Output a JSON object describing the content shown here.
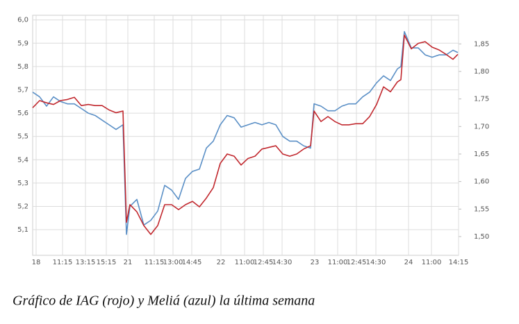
{
  "chart_data": {
    "type": "line",
    "caption": "Gráfico de IAG (rojo) y Meliá (azul) la última semana",
    "x": [
      0,
      2,
      4,
      6,
      8,
      10,
      12,
      14,
      16,
      18,
      20,
      22,
      24,
      26,
      27,
      28,
      30,
      32,
      34,
      36,
      38,
      40,
      42,
      44,
      46,
      48,
      50,
      52,
      54,
      56,
      58,
      60,
      62,
      64,
      66,
      68,
      70,
      72,
      74,
      76,
      78,
      80,
      81,
      83,
      85,
      87,
      89,
      91,
      93,
      95,
      97,
      99,
      101,
      103,
      105,
      106,
      107,
      109,
      111,
      113,
      115,
      117,
      119,
      121,
      122.4
    ],
    "series": [
      {
        "name": "Meliá",
        "color": "#5a8fc6",
        "axis": "y",
        "values": [
          5.69,
          5.67,
          5.63,
          5.67,
          5.65,
          5.64,
          5.64,
          5.62,
          5.6,
          5.59,
          5.57,
          5.55,
          5.53,
          5.55,
          5.08,
          5.2,
          5.23,
          5.12,
          5.14,
          5.18,
          5.29,
          5.27,
          5.23,
          5.32,
          5.35,
          5.36,
          5.45,
          5.48,
          5.55,
          5.59,
          5.58,
          5.54,
          5.55,
          5.56,
          5.55,
          5.56,
          5.55,
          5.5,
          5.48,
          5.48,
          5.46,
          5.45,
          5.64,
          5.63,
          5.61,
          5.61,
          5.63,
          5.64,
          5.64,
          5.67,
          5.69,
          5.73,
          5.76,
          5.74,
          5.79,
          5.8,
          5.95,
          5.88,
          5.88,
          5.85,
          5.84,
          5.85,
          5.85,
          5.87,
          5.86
        ]
      },
      {
        "name": "IAG",
        "color": "#c1272d",
        "axis": "y2",
        "values": [
          1.734,
          1.747,
          1.743,
          1.74,
          1.747,
          1.749,
          1.753,
          1.738,
          1.74,
          1.738,
          1.738,
          1.73,
          1.725,
          1.728,
          1.526,
          1.558,
          1.545,
          1.52,
          1.504,
          1.52,
          1.558,
          1.558,
          1.549,
          1.558,
          1.564,
          1.554,
          1.57,
          1.589,
          1.633,
          1.65,
          1.646,
          1.63,
          1.642,
          1.646,
          1.659,
          1.662,
          1.665,
          1.65,
          1.646,
          1.65,
          1.659,
          1.665,
          1.728,
          1.709,
          1.718,
          1.709,
          1.703,
          1.703,
          1.705,
          1.705,
          1.718,
          1.74,
          1.772,
          1.763,
          1.781,
          1.785,
          1.866,
          1.841,
          1.851,
          1.854,
          1.844,
          1.839,
          1.831,
          1.822,
          1.831
        ]
      }
    ],
    "xlim": [
      0,
      122.6
    ],
    "xticks": [
      {
        "value": 1,
        "label": "18"
      },
      {
        "value": 8.6,
        "label": "11:15"
      },
      {
        "value": 15.2,
        "label": "13:15"
      },
      {
        "value": 21.2,
        "label": "15:15"
      },
      {
        "value": 27.4,
        "label": "21"
      },
      {
        "value": 35,
        "label": "11:15"
      },
      {
        "value": 40.4,
        "label": "13:00"
      },
      {
        "value": 45.8,
        "label": "14:45"
      },
      {
        "value": 54.2,
        "label": "22"
      },
      {
        "value": 61,
        "label": "11:00"
      },
      {
        "value": 66.4,
        "label": "12:45"
      },
      {
        "value": 71.8,
        "label": "14:30"
      },
      {
        "value": 81.2,
        "label": "23"
      },
      {
        "value": 87.8,
        "label": "11:00"
      },
      {
        "value": 93.2,
        "label": "12:45"
      },
      {
        "value": 98.8,
        "label": "14:30"
      },
      {
        "value": 108.2,
        "label": "24"
      },
      {
        "value": 114.8,
        "label": "11:00"
      },
      {
        "value": 122.6,
        "label": "14:15"
      }
    ],
    "ylim": [
      4.99,
      6.02
    ],
    "yticks": [
      {
        "value": 5.1,
        "label": "5,1"
      },
      {
        "value": 5.2,
        "label": "5,2"
      },
      {
        "value": 5.3,
        "label": "5,3"
      },
      {
        "value": 5.4,
        "label": "5,4"
      },
      {
        "value": 5.5,
        "label": "5,5"
      },
      {
        "value": 5.6,
        "label": "5,6"
      },
      {
        "value": 5.7,
        "label": "5,7"
      },
      {
        "value": 5.8,
        "label": "5,8"
      },
      {
        "value": 5.9,
        "label": "5,9"
      },
      {
        "value": 6.0,
        "label": "6,0"
      }
    ],
    "y2lim": [
      1.466,
      1.902
    ],
    "y2ticks": [
      {
        "value": 1.5,
        "label": "1,50"
      },
      {
        "value": 1.55,
        "label": "1,55"
      },
      {
        "value": 1.6,
        "label": "1,60"
      },
      {
        "value": 1.65,
        "label": "1,65"
      },
      {
        "value": 1.7,
        "label": "1,70"
      },
      {
        "value": 1.75,
        "label": "1,75"
      },
      {
        "value": 1.8,
        "label": "1,80"
      },
      {
        "value": 1.85,
        "label": "1,85"
      }
    ],
    "grid": true
  }
}
